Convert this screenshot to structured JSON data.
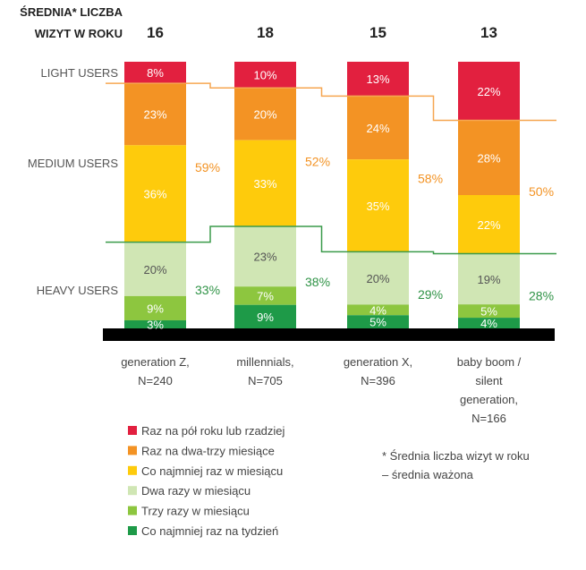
{
  "chart_data": {
    "type": "bar",
    "stacked": true,
    "header": {
      "line1": "ŚREDNIA* LICZBA",
      "line2": "WIZYT W ROKU"
    },
    "avg_visits": [
      "16",
      "18",
      "15",
      "13"
    ],
    "row_labels": {
      "light": "LIGHT USERS",
      "medium": "MEDIUM USERS",
      "heavy": "HEAVY USERS"
    },
    "categories": [
      [
        "generation Z,",
        "N=240"
      ],
      [
        "millennials,",
        "N=705"
      ],
      [
        "generation X,",
        "N=396"
      ],
      [
        "baby boom /",
        "silent",
        "generation,",
        "N=166"
      ]
    ],
    "series": [
      {
        "name": "Raz na pół roku lub rzadziej",
        "color": "#e2203f",
        "text": "#ffffff",
        "values": [
          8,
          10,
          13,
          22
        ]
      },
      {
        "name": "Raz na dwa-trzy miesiące",
        "color": "#f39324",
        "text": "#ffffff",
        "values": [
          23,
          20,
          24,
          28
        ]
      },
      {
        "name": "Co najmniej raz w miesiącu",
        "color": "#fecb0c",
        "text": "#ffffff",
        "values": [
          36,
          33,
          35,
          22
        ]
      },
      {
        "name": "Dwa razy w miesiącu",
        "color": "#d0e6b4",
        "text": "#555555",
        "values": [
          20,
          23,
          20,
          19
        ]
      },
      {
        "name": "Trzy razy w miesiącu",
        "color": "#8dc63f",
        "text": "#ffffff",
        "values": [
          9,
          7,
          4,
          5
        ]
      },
      {
        "name": "Co najmniej raz na tydzień",
        "color": "#1e9a48",
        "text": "#ffffff",
        "values": [
          3,
          9,
          5,
          4
        ]
      }
    ],
    "medium_totals": [
      "59%",
      "52%",
      "58%",
      "50%"
    ],
    "heavy_totals": [
      "33%",
      "38%",
      "29%",
      "28%"
    ],
    "medium_color": "#f39324",
    "heavy_color": "#2f9346",
    "footnote": [
      "* Średnia liczba wizyt w roku",
      "– średnia ważona"
    ]
  }
}
